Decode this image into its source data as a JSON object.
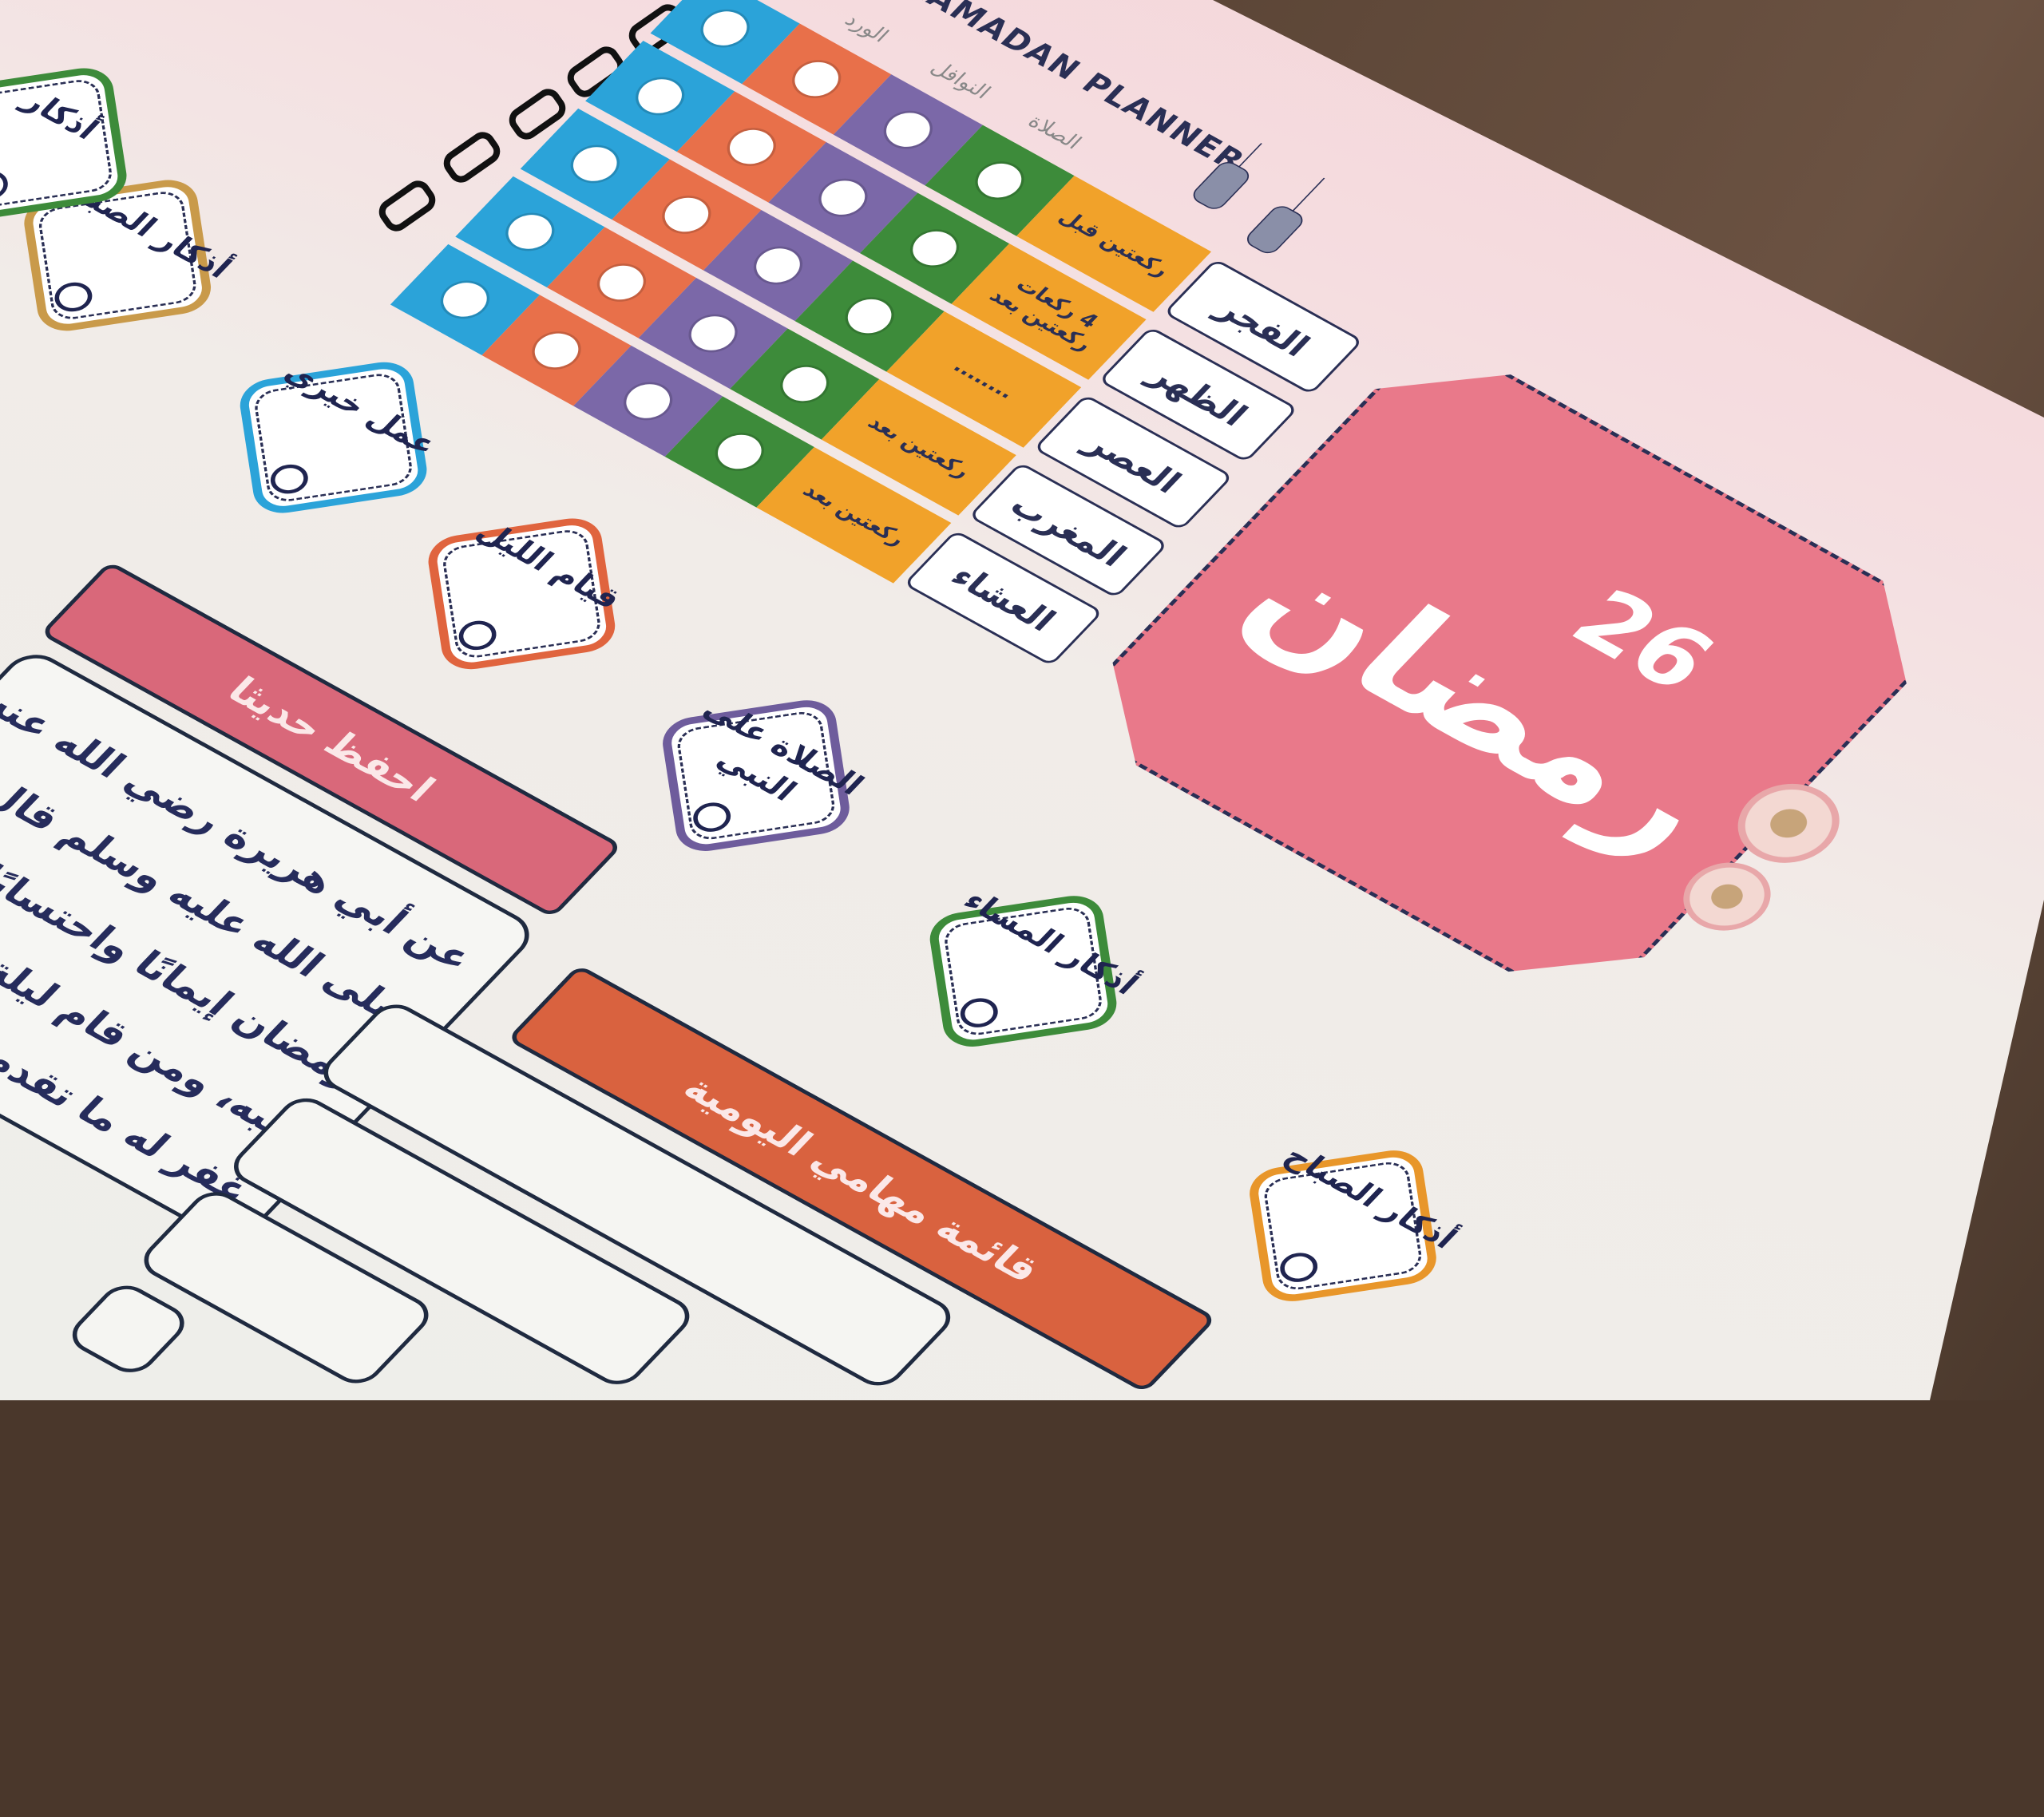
{
  "planner_title": "RAMADAN PLANNER",
  "day": {
    "number": "26",
    "month": "رمضان"
  },
  "colors": {
    "title_pink": "#e9798a",
    "blue": "#2ba3d9",
    "orange": "#e8704a",
    "purple": "#7b68a8",
    "green": "#3d8b3a",
    "yellow": "#f1a22a",
    "ink": "#2a2f55"
  },
  "table": {
    "headers": {
      "prayer": "الصلاة",
      "nawafil": "النوافل",
      "wird": "الورد"
    },
    "rows": [
      {
        "prayer": "الفجر",
        "sunnah": "ركعتين قبل"
      },
      {
        "prayer": "الظهر",
        "sunnah": "4 ركعات ركعتين بعد"
      },
      {
        "prayer": "العصر",
        "sunnah": "........"
      },
      {
        "prayer": "المغرب",
        "sunnah": "ركعتين بعد"
      },
      {
        "prayer": "العشاء",
        "sunnah": "ركعتين بعد"
      }
    ]
  },
  "habits": [
    {
      "label": "أذكار الصباح",
      "color": "#e8962a"
    },
    {
      "label": "أذكار المساء",
      "color": "#3d8b3a"
    },
    {
      "label": "الصلاة على النبي",
      "color": "#6e5c9c"
    },
    {
      "label": "قيام الليل",
      "color": "#e0643e"
    },
    {
      "label": "عمل خيري",
      "color": "#2ba3d9"
    }
  ],
  "left_page_habits": [
    {
      "label": "أذكار الصباح",
      "color": "#c99a4a"
    },
    {
      "label": "أذكار",
      "color": "#3d8b3a"
    }
  ],
  "hadith": {
    "title": "احفظ حديثا",
    "lines": [
      "عن أبي هريرة رضي الله عنه أن رسول الله",
      "صلى الله عليه وسلم قال: \"من",
      "رمضان إيمانًا واحتسابًا غفر له",
      "ذنبه، ومن قام ليلة القدر",
      "غفر له ما تقدم"
    ]
  },
  "tasks": {
    "title": "قائمة مهامي اليومية"
  }
}
